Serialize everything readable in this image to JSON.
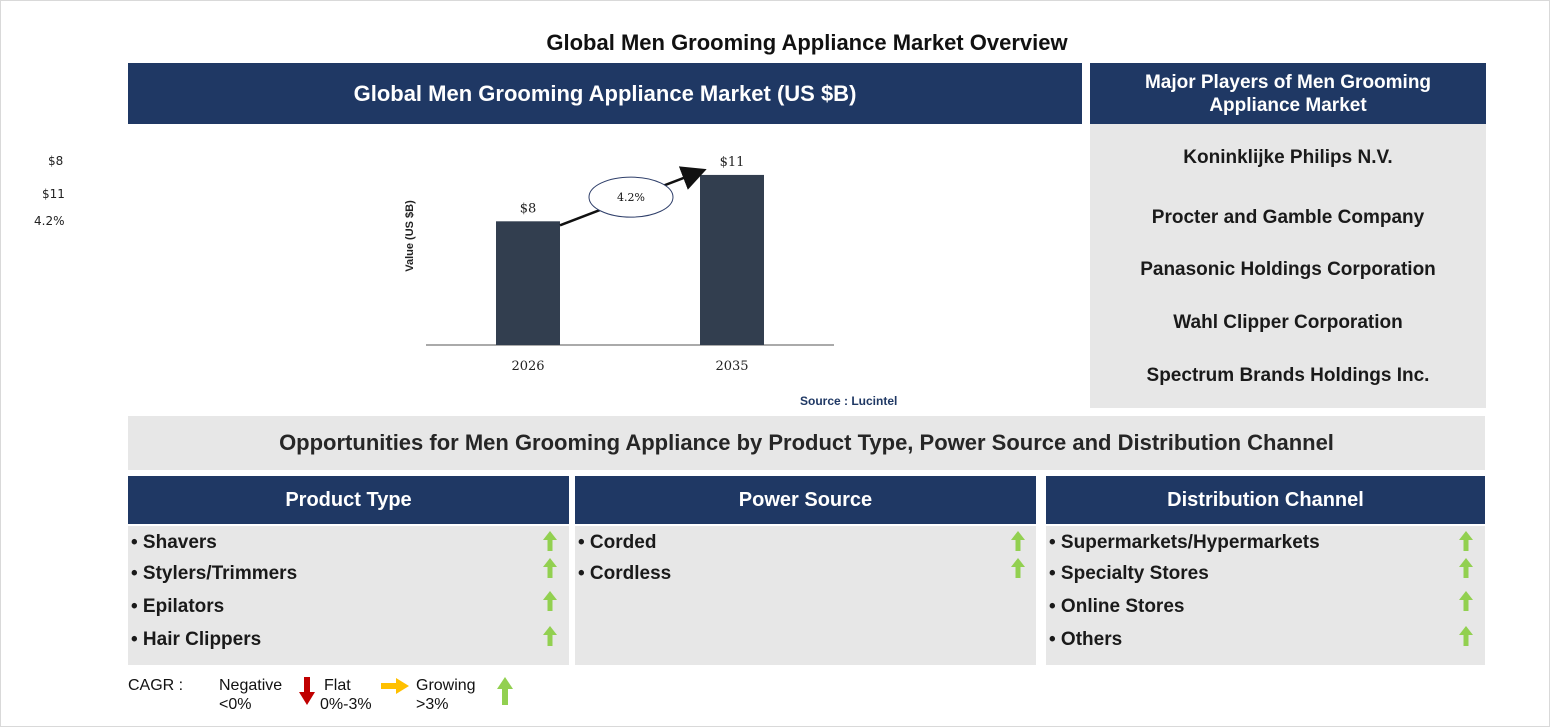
{
  "page": {
    "title": "Global Men Grooming Appliance Market Overview",
    "side_notes": [
      "$8",
      "$11",
      "4.2%"
    ]
  },
  "market_panel": {
    "header": "Global Men Grooming Appliance Market (US $B)",
    "source": "Source : Lucintel"
  },
  "chart_data": {
    "type": "bar",
    "categories": [
      "2026",
      "2035"
    ],
    "values": [
      8,
      11
    ],
    "value_labels": [
      "$8",
      "$11"
    ],
    "ylabel": "Value (US $B)",
    "cagr_label": "4.2%",
    "ylim": [
      0,
      13
    ],
    "bar_color": "#323e4f"
  },
  "players": {
    "header": "Major Players of Men Grooming Appliance Market",
    "items": [
      "Koninklijke Philips N.V.",
      "Procter and Gamble Company",
      "Panasonic Holdings Corporation",
      "Wahl Clipper Corporation",
      "Spectrum Brands Holdings Inc."
    ]
  },
  "opportunities": {
    "title": "Opportunities for Men Grooming Appliance by Product Type, Power Source and Distribution Channel",
    "columns": [
      {
        "header": "Product Type",
        "items": [
          "• Shavers",
          "• Stylers/Trimmers",
          "• Epilators",
          "• Hair Clippers"
        ]
      },
      {
        "header": "Power Source",
        "items": [
          "• Corded",
          "• Cordless"
        ]
      },
      {
        "header": "Distribution Channel",
        "items": [
          "• Supermarkets/Hypermarkets",
          "• Specialty Stores",
          "• Online Stores",
          "• Others"
        ]
      }
    ]
  },
  "legend": {
    "cagr_label": "CAGR :",
    "negative": [
      "Negative",
      "<0%"
    ],
    "flat": [
      "Flat",
      "0%-3%"
    ],
    "growing": [
      "Growing",
      ">3%"
    ]
  },
  "colors": {
    "navy": "#1f3864",
    "grey_panel": "#e7e7e7",
    "up_arrow": "#92d050",
    "down_arrow": "#c00000",
    "flat_arrow": "#ffc000"
  }
}
